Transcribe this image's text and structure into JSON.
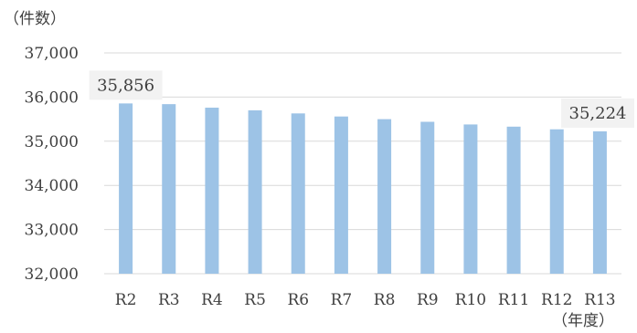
{
  "chart_data": {
    "type": "bar",
    "y_unit": "（件数）",
    "x_unit": "（年度）",
    "categories": [
      "R2",
      "R3",
      "R4",
      "R5",
      "R6",
      "R7",
      "R8",
      "R9",
      "R10",
      "R11",
      "R12",
      "R13"
    ],
    "values": [
      35856,
      35840,
      35760,
      35700,
      35630,
      35560,
      35500,
      35440,
      35380,
      35330,
      35270,
      35224
    ],
    "ylim": [
      32000,
      37000
    ],
    "yticks": [
      "32,000",
      "33,000",
      "34,000",
      "35,000",
      "36,000",
      "37,000"
    ],
    "grid": true,
    "bar_color": "#9dc3e6",
    "data_labels": [
      {
        "index": 0,
        "text": "35,856"
      },
      {
        "index": 11,
        "text": "35,224"
      }
    ]
  }
}
